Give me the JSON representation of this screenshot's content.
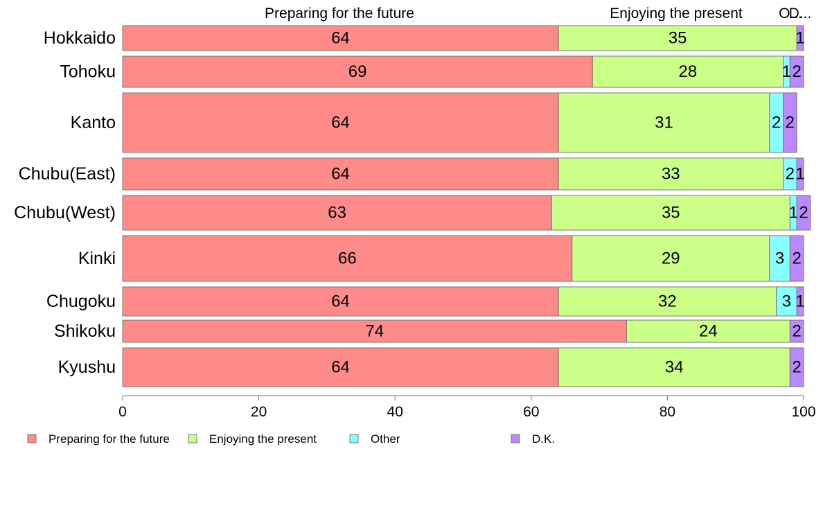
{
  "chart_data": {
    "type": "bar",
    "orientation": "horizontal",
    "stacked": true,
    "categories": [
      "Hokkaido",
      "Tohoku",
      "Kanto",
      "Chubu(East)",
      "Chubu(West)",
      "Kinki",
      "Chugoku",
      "Shikoku",
      "Kyushu"
    ],
    "series": [
      {
        "name": "Preparing for the future",
        "color": "#ff8a8a",
        "values": [
          64,
          69,
          64,
          64,
          63,
          66,
          64,
          74,
          64
        ]
      },
      {
        "name": "Enjoying the present",
        "color": "#ccff88",
        "values": [
          35,
          28,
          31,
          33,
          35,
          29,
          32,
          24,
          34
        ]
      },
      {
        "name": "Other",
        "color": "#88ffff",
        "values": [
          0,
          1,
          2,
          2,
          1,
          3,
          3,
          0,
          0
        ]
      },
      {
        "name": "D.K.",
        "color": "#bb88ff",
        "values": [
          1,
          2,
          2,
          1,
          2,
          2,
          1,
          2,
          2
        ]
      }
    ],
    "bar_labels": [
      [
        "64",
        "35",
        "",
        "1"
      ],
      [
        "69",
        "28",
        "1",
        "2"
      ],
      [
        "64",
        "31",
        "2",
        "2"
      ],
      [
        "64",
        "33",
        "2",
        "1"
      ],
      [
        "63",
        "35",
        "1",
        "2"
      ],
      [
        "66",
        "29",
        "3",
        "2"
      ],
      [
        "64",
        "32",
        "3",
        "1"
      ],
      [
        "74",
        "24",
        "",
        "2"
      ],
      [
        "64",
        "34",
        "",
        "2"
      ]
    ],
    "top_labels": [
      "Preparing for the future",
      "Enjoying the present",
      "O...",
      "D..."
    ],
    "xlim": [
      0,
      100
    ],
    "xticks": [
      0,
      20,
      40,
      60,
      80,
      100
    ],
    "legend": {
      "placement": "bottom-left",
      "entries": [
        "Preparing for the future",
        "Enjoying the present",
        "Other",
        "D.K."
      ]
    },
    "grid": false,
    "bar_border_color": "#777777",
    "axis_color": "#777777"
  }
}
